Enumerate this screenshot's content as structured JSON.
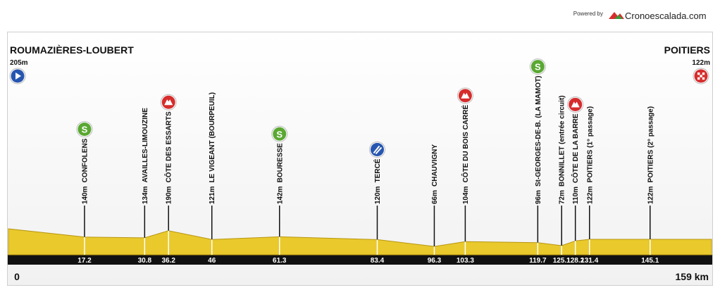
{
  "chart_data": {
    "type": "profile",
    "powered_by": "Powered by",
    "brand": "Cronoescalada.com",
    "start": {
      "name": "ROUMAZIÈRES-LOUBERT",
      "altitude": 205,
      "altitude_label": "205m"
    },
    "finish": {
      "name": "POITIERS",
      "altitude": 122,
      "altitude_label": "122m"
    },
    "xlim": [
      0,
      159
    ],
    "xticks": [
      0,
      {
        "value": 159,
        "label": "159 km"
      }
    ],
    "icons": {
      "sprint": {
        "label": "S",
        "color": "#5aa832"
      },
      "climb": {
        "color": "#d62d2d"
      },
      "feed": {
        "color": "#2756b0"
      },
      "start": {
        "color": "#2756b0"
      },
      "finish": {
        "color": "#d62d2d"
      }
    },
    "profile_color": "#e9c92c",
    "waypoints": [
      {
        "name": "CONFOLENS",
        "altitude": 140,
        "altitude_label": "140m",
        "km": 17.2,
        "icon": "sprint"
      },
      {
        "name": "AVAILLES-LIMOUZINE",
        "altitude": 134,
        "altitude_label": "134m",
        "km": 30.8
      },
      {
        "name": "CÔTE DES ESSARTS",
        "altitude": 190,
        "altitude_label": "190m",
        "km": 36.2,
        "icon": "climb"
      },
      {
        "name": "LE VIGEANT (BOURPEUIL)",
        "altitude": 121,
        "altitude_label": "121m",
        "km": 46
      },
      {
        "name": "BOURESSE",
        "altitude": 142,
        "altitude_label": "142m",
        "km": 61.3,
        "icon": "sprint"
      },
      {
        "name": "TERCÉ",
        "altitude": 120,
        "altitude_label": "120m",
        "km": 83.4,
        "icon": "feed"
      },
      {
        "name": "CHAUVIGNY",
        "altitude": 66,
        "altitude_label": "66m",
        "km": 96.3
      },
      {
        "name": "CÔTE DU BOIS CARRÉ",
        "altitude": 104,
        "altitude_label": "104m",
        "km": 103.3,
        "icon": "climb"
      },
      {
        "name": "St-GEORGES-DE-B. (LA MAMOT)",
        "altitude": 96,
        "altitude_label": "96m",
        "km": 119.7,
        "icon": "sprint"
      },
      {
        "name": "BONNILLET (entrée circuit)",
        "altitude": 72,
        "altitude_label": "72m",
        "km": 125.1
      },
      {
        "name": "CÔTE DE LA BARRE",
        "altitude": 110,
        "altitude_label": "110m",
        "km": 128.2,
        "icon": "climb"
      },
      {
        "name": "POITIERS (1° passage)",
        "altitude": 122,
        "altitude_label": "122m",
        "km": 131.4
      },
      {
        "name": "POITIERS (2° passage)",
        "altitude": 122,
        "altitude_label": "122m",
        "km": 145.1
      }
    ]
  }
}
